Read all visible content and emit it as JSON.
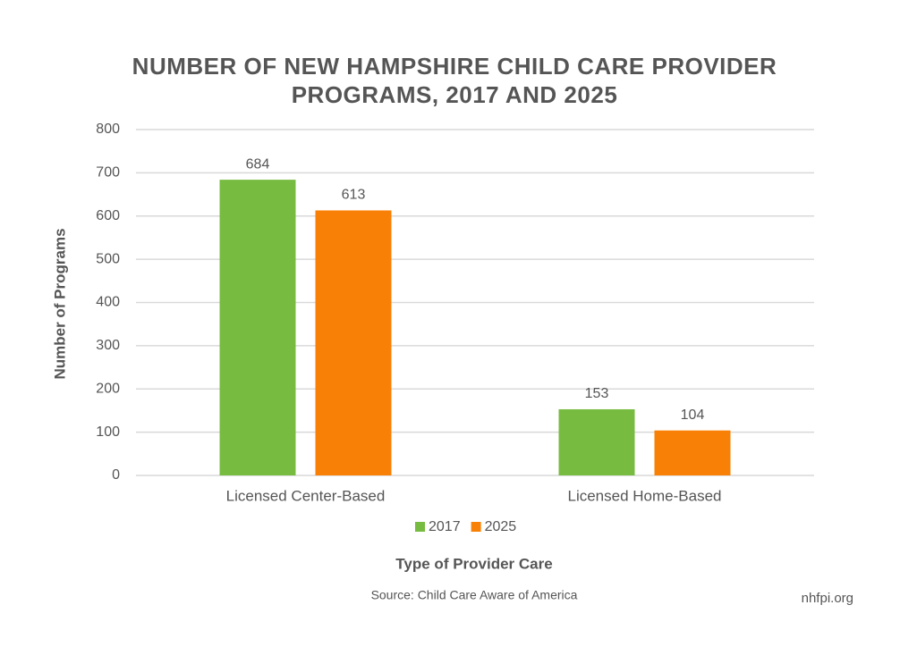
{
  "chart_data": {
    "type": "bar",
    "title": "NUMBER OF NEW HAMPSHIRE CHILD CARE PROVIDER PROGRAMS, 2017 AND 2025",
    "categories": [
      "Licensed Center-Based",
      "Licensed Home-Based"
    ],
    "series": [
      {
        "name": "2017",
        "color": "#77bb41",
        "values": [
          684,
          153
        ]
      },
      {
        "name": "2025",
        "color": "#f98006",
        "values": [
          613,
          104
        ]
      }
    ],
    "xlabel": "Type of Provider Care",
    "ylabel": "Number of Programs",
    "ylim": [
      0,
      800
    ],
    "yticks": [
      0,
      100,
      200,
      300,
      400,
      500,
      600,
      700,
      800
    ],
    "grid": true,
    "legend": "bottom",
    "source": "Source: Child Care Aware of America",
    "credit": "nhfpi.org"
  }
}
